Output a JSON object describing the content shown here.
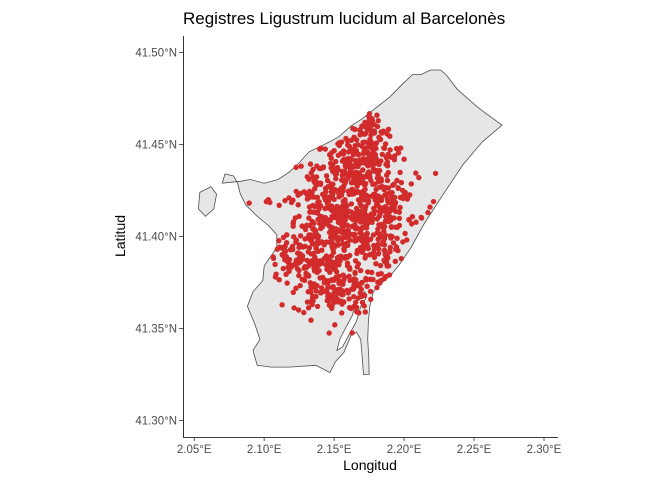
{
  "chart_data": {
    "type": "scatter",
    "title": "Registres Ligustrum lucidum al Barcelonès",
    "xlabel": "Longitud",
    "ylabel": "Latitud",
    "xlim": [
      2.042,
      2.31
    ],
    "ylim": [
      41.291,
      41.509
    ],
    "x_ticks": [
      {
        "value": 2.05,
        "label": "2.05°E"
      },
      {
        "value": 2.1,
        "label": "2.10°E"
      },
      {
        "value": 2.15,
        "label": "2.15°E"
      },
      {
        "value": 2.2,
        "label": "2.20°E"
      },
      {
        "value": 2.25,
        "label": "2.25°E"
      },
      {
        "value": 2.3,
        "label": "2.30°E"
      }
    ],
    "y_ticks": [
      {
        "value": 41.3,
        "label": "41.30°N"
      },
      {
        "value": 41.35,
        "label": "41.35°N"
      },
      {
        "value": 41.4,
        "label": "41.40°N"
      },
      {
        "value": 41.45,
        "label": "41.45°N"
      },
      {
        "value": 41.5,
        "label": "41.50°N"
      }
    ],
    "grid": false,
    "legend": "none",
    "colors": {
      "points": "#d22b2b",
      "land": "#e6e6e6",
      "outline": "#4d4d4d"
    },
    "boundary": [
      [
        2.27,
        41.4605
      ],
      [
        2.256,
        41.4515
      ],
      [
        2.242,
        41.439
      ],
      [
        2.228,
        41.423
      ],
      [
        2.214,
        41.4065
      ],
      [
        2.205,
        41.394
      ],
      [
        2.196,
        41.384
      ],
      [
        2.1905,
        41.379
      ],
      [
        2.183,
        41.374
      ],
      [
        2.178,
        41.37
      ],
      [
        2.1755,
        41.362
      ],
      [
        2.1745,
        41.354
      ],
      [
        2.174,
        41.344
      ],
      [
        2.1748,
        41.334
      ],
      [
        2.175,
        41.325
      ],
      [
        2.171,
        41.325
      ],
      [
        2.17,
        41.335
      ],
      [
        2.169,
        41.344
      ],
      [
        2.166,
        41.348
      ],
      [
        2.162,
        41.346
      ],
      [
        2.157,
        41.337
      ],
      [
        2.151,
        41.332
      ],
      [
        2.147,
        41.326
      ],
      [
        2.137,
        41.33
      ],
      [
        2.118,
        41.329
      ],
      [
        2.105,
        41.329
      ],
      [
        2.095,
        41.33
      ],
      [
        2.092,
        41.338
      ],
      [
        2.097,
        41.344
      ],
      [
        2.093,
        41.353
      ],
      [
        2.088,
        41.362
      ],
      [
        2.092,
        41.37
      ],
      [
        2.099,
        41.376
      ],
      [
        2.1,
        41.384
      ],
      [
        2.109,
        41.394
      ],
      [
        2.109,
        41.401
      ],
      [
        2.092,
        41.407
      ],
      [
        2.076,
        41.408
      ],
      [
        2.084,
        41.416
      ],
      [
        2.08,
        41.423
      ],
      [
        2.077,
        41.428
      ],
      [
        2.072,
        41.43
      ],
      [
        2.071,
        41.423
      ],
      [
        2.068,
        41.42
      ],
      [
        2.065,
        41.424
      ],
      [
        2.057,
        41.422
      ],
      [
        2.054,
        41.415
      ],
      [
        2.056,
        41.408
      ],
      [
        2.064,
        41.412
      ],
      [
        2.066,
        41.404
      ],
      [
        2.074,
        41.402
      ],
      [
        2.08,
        41.396
      ],
      [
        2.09,
        41.39
      ],
      [
        2.1,
        41.384
      ]
    ],
    "boundary_main": [
      [
        2.27,
        41.4605
      ],
      [
        2.256,
        41.4515
      ],
      [
        2.242,
        41.439
      ],
      [
        2.228,
        41.423
      ],
      [
        2.214,
        41.4065
      ],
      [
        2.205,
        41.394
      ],
      [
        2.196,
        41.384
      ],
      [
        2.1905,
        41.379
      ],
      [
        2.183,
        41.374
      ],
      [
        2.178,
        41.37
      ],
      [
        2.1755,
        41.362
      ],
      [
        2.1745,
        41.354
      ],
      [
        2.174,
        41.344
      ],
      [
        2.1748,
        41.334
      ],
      [
        2.175,
        41.325
      ],
      [
        2.171,
        41.325
      ],
      [
        2.17,
        41.335
      ],
      [
        2.169,
        41.344
      ],
      [
        2.166,
        41.348
      ],
      [
        2.162,
        41.346
      ],
      [
        2.157,
        41.337
      ],
      [
        2.151,
        41.332
      ],
      [
        2.147,
        41.326
      ],
      [
        2.137,
        41.33
      ],
      [
        2.118,
        41.329
      ],
      [
        2.105,
        41.329
      ],
      [
        2.095,
        41.33
      ],
      [
        2.092,
        41.338
      ],
      [
        2.097,
        41.344
      ],
      [
        2.093,
        41.353
      ],
      [
        2.088,
        41.362
      ],
      [
        2.092,
        41.37
      ],
      [
        2.099,
        41.376
      ],
      [
        2.1,
        41.384
      ],
      [
        2.109,
        41.394
      ],
      [
        2.109,
        41.401
      ],
      [
        2.103,
        41.406
      ],
      [
        2.095,
        41.411
      ],
      [
        2.087,
        41.417
      ],
      [
        2.083,
        41.423
      ],
      [
        2.081,
        41.429
      ],
      [
        2.078,
        41.433
      ],
      [
        2.072,
        41.434
      ],
      [
        2.07,
        41.429
      ],
      [
        2.083,
        41.43
      ],
      [
        2.09,
        41.431
      ],
      [
        2.1,
        41.429
      ],
      [
        2.11,
        41.431
      ],
      [
        2.118,
        41.435
      ],
      [
        2.125,
        41.44
      ],
      [
        2.132,
        41.446
      ],
      [
        2.143,
        41.45
      ],
      [
        2.153,
        41.454
      ],
      [
        2.162,
        41.46
      ],
      [
        2.17,
        41.464
      ],
      [
        2.18,
        41.47
      ],
      [
        2.19,
        41.476
      ],
      [
        2.199,
        41.483
      ],
      [
        2.206,
        41.488
      ],
      [
        2.212,
        41.488
      ],
      [
        2.219,
        41.4905
      ],
      [
        2.226,
        41.4905
      ],
      [
        2.23,
        41.488
      ],
      [
        2.234,
        41.484
      ],
      [
        2.238,
        41.48
      ],
      [
        2.244,
        41.476
      ],
      [
        2.253,
        41.47
      ],
      [
        2.262,
        41.465
      ],
      [
        2.27,
        41.4605
      ]
    ],
    "island": [
      [
        2.054,
        41.424
      ],
      [
        2.062,
        41.427
      ],
      [
        2.066,
        41.423
      ],
      [
        2.064,
        41.415
      ],
      [
        2.058,
        41.411
      ],
      [
        2.053,
        41.415
      ]
    ],
    "port": [
      [
        2.172,
        41.37
      ],
      [
        2.166,
        41.366
      ],
      [
        2.163,
        41.357
      ],
      [
        2.158,
        41.35
      ],
      [
        2.154,
        41.344
      ],
      [
        2.152,
        41.338
      ],
      [
        2.156,
        41.34
      ],
      [
        2.161,
        41.347
      ],
      [
        2.166,
        41.354
      ],
      [
        2.169,
        41.362
      ],
      [
        2.173,
        41.367
      ]
    ],
    "clusters": [
      {
        "cx": 2.152,
        "cy": 41.402,
        "sx": 0.018,
        "sy": 0.014,
        "n": 320
      },
      {
        "cx": 2.172,
        "cy": 41.42,
        "sx": 0.016,
        "sy": 0.018,
        "n": 220
      },
      {
        "cx": 2.16,
        "cy": 41.436,
        "sx": 0.012,
        "sy": 0.01,
        "n": 90
      },
      {
        "cx": 2.176,
        "cy": 41.448,
        "sx": 0.008,
        "sy": 0.01,
        "n": 70
      },
      {
        "cx": 2.15,
        "cy": 41.37,
        "sx": 0.015,
        "sy": 0.006,
        "n": 120
      },
      {
        "cx": 2.122,
        "cy": 41.388,
        "sx": 0.012,
        "sy": 0.006,
        "n": 70
      },
      {
        "cx": 2.195,
        "cy": 41.418,
        "sx": 0.008,
        "sy": 0.008,
        "n": 50
      },
      {
        "cx": 2.185,
        "cy": 41.392,
        "sx": 0.006,
        "sy": 0.008,
        "n": 40
      },
      {
        "cx": 2.175,
        "cy": 41.46,
        "sx": 0.004,
        "sy": 0.003,
        "n": 15
      },
      {
        "cx": 2.14,
        "cy": 41.425,
        "sx": 0.01,
        "sy": 0.008,
        "n": 50
      }
    ],
    "points": [
      [
        2.1015,
        41.419
      ],
      [
        2.104,
        41.4185
      ],
      [
        2.103,
        41.42
      ],
      [
        2.1085,
        41.3795
      ],
      [
        2.108,
        41.378
      ],
      [
        2.1465,
        41.3475
      ],
      [
        2.1505,
        41.352
      ],
      [
        2.1395,
        41.452
      ],
      [
        2.1405,
        41.448
      ],
      [
        2.149,
        41.439
      ],
      [
        2.132,
        41.41
      ],
      [
        2.2185,
        41.416
      ],
      [
        2.217,
        41.413
      ],
      [
        2.221,
        41.419
      ],
      [
        2.206,
        41.38
      ],
      [
        2.2125,
        41.41
      ],
      [
        2.189,
        41.384
      ],
      [
        2.17,
        41.46
      ],
      [
        2.172,
        41.462
      ],
      [
        2.175,
        41.463
      ],
      [
        2.194,
        41.393
      ],
      [
        2.198,
        41.388
      ],
      [
        2.202,
        41.385
      ],
      [
        2.125,
        41.411
      ],
      [
        2.121,
        41.408
      ],
      [
        2.156,
        41.441
      ],
      [
        2.19,
        41.447
      ],
      [
        2.2,
        41.442
      ],
      [
        2.199,
        41.425
      ],
      [
        2.191,
        41.405
      ],
      [
        2.195,
        41.399
      ],
      [
        2.165,
        41.38
      ],
      [
        2.17,
        41.375
      ],
      [
        2.135,
        41.365
      ],
      [
        2.13,
        41.38
      ]
    ]
  }
}
